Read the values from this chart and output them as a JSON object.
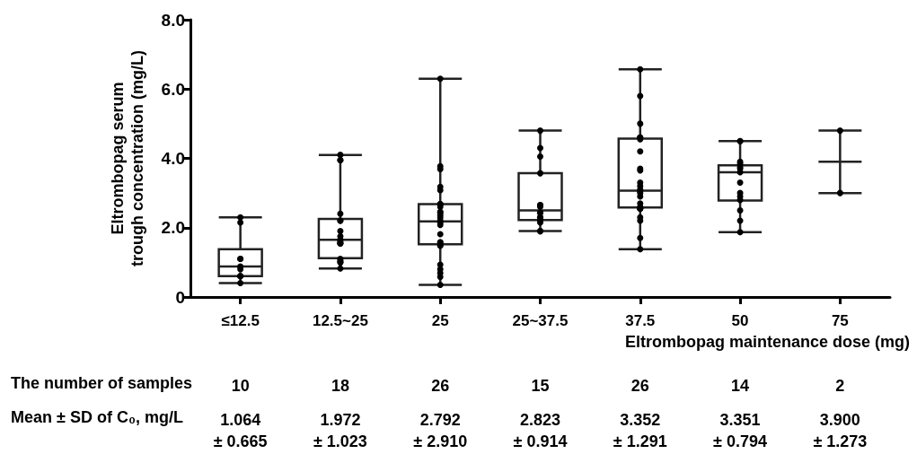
{
  "chart_data": {
    "type": "box",
    "xlabel": "Eltrombopag maintenance dose (mg)",
    "ylabel": "Eltrombopag serum\ntrough concentration (mg/L)",
    "categories": [
      "≤12.5",
      "12.5~25",
      "25",
      "25~37.5",
      "37.5",
      "50",
      "75"
    ],
    "boxes": [
      {
        "low": 0.4,
        "q1": 0.6,
        "median": 0.88,
        "q3": 1.38,
        "high": 2.3
      },
      {
        "low": 0.82,
        "q1": 1.12,
        "median": 1.65,
        "q3": 2.25,
        "high": 4.1
      },
      {
        "low": 0.35,
        "q1": 1.52,
        "median": 2.18,
        "q3": 2.68,
        "high": 6.3
      },
      {
        "low": 1.9,
        "q1": 2.22,
        "median": 2.5,
        "q3": 3.57,
        "high": 4.8
      },
      {
        "low": 1.38,
        "q1": 2.58,
        "median": 3.07,
        "q3": 4.57,
        "high": 6.57
      },
      {
        "low": 1.87,
        "q1": 2.78,
        "median": 3.6,
        "q3": 3.8,
        "high": 4.5
      },
      {
        "low": 3.0,
        "q1": 3.9,
        "median": 3.9,
        "q3": 3.9,
        "high": 4.8
      }
    ],
    "series": [
      {
        "type": "scatter",
        "color": "#000000",
        "x": [
          "≤12.5",
          "≤12.5",
          "≤12.5",
          "≤12.5",
          "≤12.5",
          "≤12.5",
          "≤12.5",
          "≤12.5",
          "≤12.5",
          "≤12.5",
          "12.5~25",
          "12.5~25",
          "12.5~25",
          "12.5~25",
          "12.5~25",
          "12.5~25",
          "12.5~25",
          "12.5~25",
          "12.5~25",
          "12.5~25",
          "12.5~25",
          "12.5~25",
          "12.5~25",
          "12.5~25",
          "12.5~25",
          "12.5~25",
          "12.5~25",
          "12.5~25",
          "25",
          "25",
          "25",
          "25",
          "25",
          "25",
          "25",
          "25",
          "25",
          "25",
          "25",
          "25",
          "25",
          "25",
          "25",
          "25",
          "25",
          "25",
          "25",
          "25",
          "25",
          "25",
          "25",
          "25",
          "25",
          "25",
          "25~37.5",
          "25~37.5",
          "25~37.5",
          "25~37.5",
          "25~37.5",
          "25~37.5",
          "25~37.5",
          "25~37.5",
          "25~37.5",
          "25~37.5",
          "25~37.5",
          "25~37.5",
          "25~37.5",
          "25~37.5",
          "25~37.5",
          "37.5",
          "37.5",
          "37.5",
          "37.5",
          "37.5",
          "37.5",
          "37.5",
          "37.5",
          "37.5",
          "37.5",
          "37.5",
          "37.5",
          "37.5",
          "37.5",
          "37.5",
          "37.5",
          "37.5",
          "37.5",
          "37.5",
          "37.5",
          "37.5",
          "37.5",
          "37.5",
          "37.5",
          "37.5",
          "37.5",
          "50",
          "50",
          "50",
          "50",
          "50",
          "50",
          "50",
          "50",
          "50",
          "50",
          "50",
          "50",
          "50",
          "50",
          "75",
          "75"
        ],
        "values": [
          2.3,
          2.15,
          1.1,
          1.1,
          0.88,
          0.8,
          0.6,
          0.6,
          0.6,
          0.4,
          4.1,
          3.95,
          3.95,
          2.4,
          2.2,
          2.2,
          1.9,
          1.75,
          1.65,
          1.6,
          1.55,
          1.55,
          1.55,
          1.1,
          1.05,
          1.0,
          1.0,
          0.82,
          6.3,
          3.77,
          3.69,
          3.18,
          3.08,
          2.68,
          2.68,
          2.68,
          2.6,
          2.46,
          2.43,
          2.36,
          2.29,
          2.2,
          2.14,
          2.08,
          1.81,
          1.58,
          1.58,
          1.48,
          1.48,
          0.93,
          0.8,
          0.69,
          0.58,
          0.35,
          4.8,
          4.3,
          4.05,
          3.57,
          2.65,
          2.65,
          2.6,
          2.43,
          2.43,
          2.3,
          2.3,
          2.2,
          2.15,
          1.9,
          1.9,
          6.57,
          5.8,
          5.0,
          4.6,
          4.6,
          4.6,
          4.55,
          4.2,
          3.7,
          3.65,
          3.3,
          3.2,
          3.1,
          3.05,
          3.0,
          2.9,
          2.7,
          2.6,
          2.55,
          2.55,
          2.55,
          2.55,
          2.3,
          2.2,
          1.7,
          1.38,
          4.5,
          4.5,
          3.9,
          3.85,
          3.75,
          3.7,
          3.6,
          3.3,
          3.0,
          2.9,
          2.8,
          2.5,
          2.2,
          1.87,
          4.8,
          3.0
        ]
      }
    ],
    "ylim": [
      0,
      8
    ],
    "yticks": [
      0,
      {
        "value": 2,
        "label": "2.0"
      },
      {
        "value": 4,
        "label": "4.0"
      },
      {
        "value": 6,
        "label": "6.0"
      },
      {
        "value": 8,
        "label": "8.0"
      }
    ],
    "grid": false,
    "marker": "circle",
    "color": "#222222",
    "annotations": [
      "The number of samples",
      "10",
      "18",
      "26",
      "15",
      "26",
      "14",
      "2",
      "Mean ± SD of C₀, mg/L",
      "1.064\n± 0.665",
      "1.972\n± 1.023",
      "2.792\n± 2.910",
      "2.823\n± 0.914",
      "3.352\n± 1.291",
      "3.351\n± 0.794",
      "3.900\n± 1.273"
    ]
  }
}
